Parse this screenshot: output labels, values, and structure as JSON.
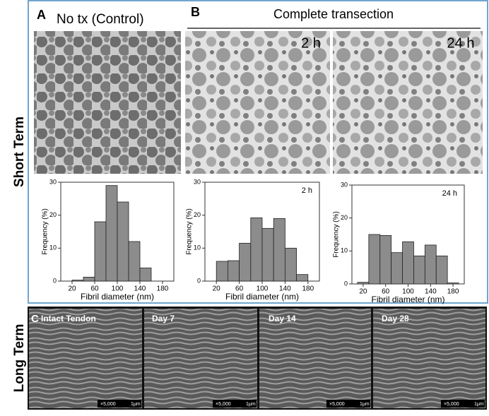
{
  "row_labels": [
    "Short Term",
    "Long Term"
  ],
  "panels": {
    "a": {
      "letter": "A",
      "title": "No tx (Control)"
    },
    "b": {
      "letter": "B",
      "title": "Complete transection",
      "images": [
        "2 h",
        "24 h"
      ]
    },
    "c": {
      "letter": "C",
      "images": [
        "Intact Tendon",
        "Day 7",
        "Day 14",
        "Day 28"
      ],
      "magnification": "×5,000",
      "scale": "1μm"
    }
  },
  "chart_data": [
    {
      "type": "histogram",
      "xlabel": "Fibril diameter (nm)",
      "ylabel": "Frequency (%)",
      "color": "#8c8c8c",
      "bins": [
        20,
        40,
        60,
        80,
        100,
        120,
        140,
        160
      ],
      "values": [
        0.3,
        1.2,
        18,
        29,
        24,
        12,
        4
      ],
      "xlim": [
        0,
        200
      ],
      "xticks": [
        20,
        60,
        100,
        140,
        180
      ],
      "ylim": [
        0,
        30
      ],
      "yticks": [
        0,
        10,
        20,
        30
      ]
    },
    {
      "type": "histogram",
      "annotation": "2 h",
      "xlabel": "Fibril diameter (nm)",
      "ylabel": "Frequency (%)",
      "color": "#8c8c8c",
      "bins": [
        20,
        40,
        60,
        80,
        100,
        120,
        140,
        160,
        180
      ],
      "values": [
        6,
        6.2,
        11.5,
        19.2,
        16,
        19,
        10,
        2
      ],
      "xlim": [
        0,
        200
      ],
      "xticks": [
        20,
        60,
        100,
        140,
        180
      ],
      "ylim": [
        0,
        30
      ],
      "yticks": [
        0,
        10,
        20,
        30
      ]
    },
    {
      "type": "histogram",
      "annotation": "24 h",
      "xlabel": "Fibril diameter (nm)",
      "ylabel": "Frequency (%)",
      "color": "#8c8c8c",
      "bins": [
        10,
        30,
        50,
        70,
        90,
        110,
        130,
        150,
        170,
        190
      ],
      "values": [
        0.5,
        15,
        14.7,
        9.5,
        12.8,
        8.5,
        11.8,
        8.5,
        0.3
      ],
      "xlim": [
        0,
        200
      ],
      "xticks": [
        20,
        60,
        100,
        140,
        180
      ],
      "ylim": [
        0,
        30
      ],
      "yticks": [
        0,
        10,
        20,
        30
      ]
    }
  ]
}
